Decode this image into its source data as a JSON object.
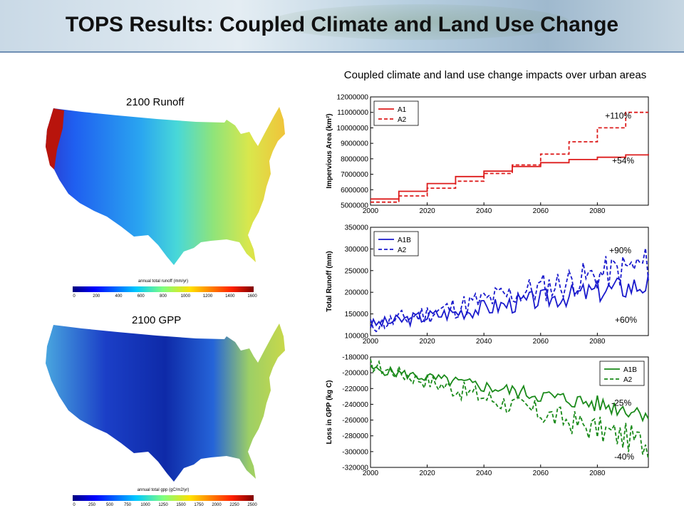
{
  "header": {
    "title": "TOPS Results: Coupled Climate and Land Use Change"
  },
  "maps": {
    "runoff": {
      "title": "2100 Runoff",
      "colorbar_label": "annual total runoff (mm/yr)",
      "ticks": [
        "0",
        "200",
        "400",
        "600",
        "800",
        "1000",
        "1200",
        "1400",
        "1600"
      ]
    },
    "gpp": {
      "title": "2100 GPP",
      "colorbar_label": "annual total gpp (gC/m2/yr)",
      "ticks": [
        "0",
        "250",
        "500",
        "750",
        "1000",
        "1250",
        "1500",
        "1750",
        "2000",
        "2250",
        "2500"
      ]
    }
  },
  "charts_title": "Coupled climate and land use change impacts over urban areas",
  "colors": {
    "red": "#dd1c1c",
    "blue": "#1a1acc",
    "green": "#1a8a1a"
  },
  "chart_data": [
    {
      "type": "line",
      "ylabel": "Impervious Area (km²)",
      "xlim": [
        2000,
        2098
      ],
      "ylim": [
        5000000,
        12000000
      ],
      "xticks": [
        2000,
        2020,
        2040,
        2060,
        2080
      ],
      "yticks": [
        5000000,
        6000000,
        7000000,
        8000000,
        9000000,
        10000000,
        11000000,
        12000000
      ],
      "legend": "top-left",
      "annotations": [
        {
          "text": "+110%",
          "x": 2092,
          "y": 10600000
        },
        {
          "text": "+54%",
          "x": 2093,
          "y": 7700000
        }
      ],
      "series": [
        {
          "name": "A1",
          "style": "solid",
          "color": "#dd1c1c",
          "step": true,
          "x": [
            2000,
            2010,
            2020,
            2030,
            2040,
            2050,
            2060,
            2070,
            2080,
            2090,
            2098
          ],
          "y": [
            5400000,
            5900000,
            6400000,
            6850000,
            7200000,
            7500000,
            7750000,
            7950000,
            8100000,
            8250000,
            8300000
          ]
        },
        {
          "name": "A2",
          "style": "dashed",
          "color": "#dd1c1c",
          "step": true,
          "x": [
            2000,
            2010,
            2020,
            2030,
            2040,
            2050,
            2060,
            2070,
            2080,
            2090,
            2098
          ],
          "y": [
            5200000,
            5600000,
            6100000,
            6550000,
            7050000,
            7600000,
            8300000,
            9100000,
            10000000,
            11000000,
            11000000
          ]
        }
      ]
    },
    {
      "type": "line",
      "ylabel": "Total Runoff (mm)",
      "xlim": [
        2000,
        2098
      ],
      "ylim": [
        100000,
        350000
      ],
      "xticks": [
        2000,
        2020,
        2040,
        2060,
        2080
      ],
      "yticks": [
        100000,
        150000,
        200000,
        250000,
        300000,
        350000
      ],
      "legend": "top-left",
      "annotations": [
        {
          "text": "+90%",
          "x": 2092,
          "y": 290000
        },
        {
          "text": "+60%",
          "x": 2094,
          "y": 130000
        }
      ],
      "series": [
        {
          "name": "A1B",
          "style": "solid",
          "color": "#1a1acc",
          "trend": [
            125000,
            220000
          ],
          "amp": 22000,
          "seed": 3
        },
        {
          "name": "A2",
          "style": "dashed",
          "color": "#1a1acc",
          "trend": [
            122000,
            265000
          ],
          "amp": 32000,
          "seed": 11
        }
      ]
    },
    {
      "type": "line",
      "ylabel": "Loss in GPP  (kg C)",
      "xlim": [
        2000,
        2098
      ],
      "ylim": [
        -320000,
        -180000
      ],
      "xticks": [
        2000,
        2020,
        2040,
        2060,
        2080
      ],
      "yticks": [
        -180000,
        -200000,
        -220000,
        -240000,
        -260000,
        -280000,
        -300000,
        -320000
      ],
      "legend": "top-right",
      "annotations": [
        {
          "text": "-25%",
          "x": 2092,
          "y": -242000
        },
        {
          "text": "-40%",
          "x": 2093,
          "y": -310000
        }
      ],
      "series": [
        {
          "name": "A1B",
          "style": "solid",
          "color": "#1a8a1a",
          "trend": [
            -195000,
            -250000
          ],
          "amp": 9000,
          "seed": 5
        },
        {
          "name": "A2",
          "style": "dashed",
          "color": "#1a8a1a",
          "trend": [
            -190000,
            -290000
          ],
          "amp": 14000,
          "seed": 17
        }
      ]
    }
  ]
}
